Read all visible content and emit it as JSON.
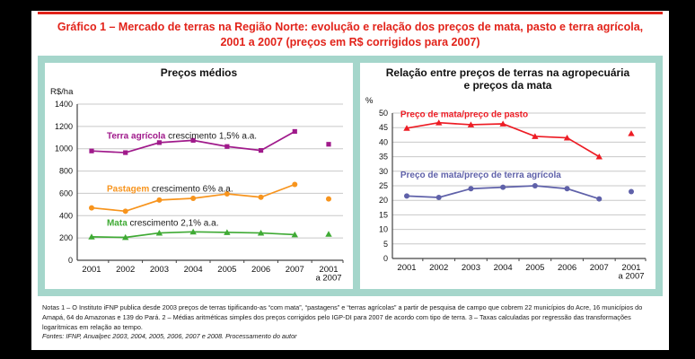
{
  "page": {
    "title_line1": "Gráfico 1 – Mercado de terras na Região Norte: evolução e relação dos preços de mata, pasto e terra agrícola,",
    "title_line2": "2001 a 2007 (preços em R$ corrigidos para 2007)",
    "notes": "Notas 1 – O Instituto iFNP publica desde 2003 preços de terras tipificando-as “com mata”, “pastagens” e “terras agrícolas” a partir de pesquisa de campo que cobrem 22 municípios do Acre, 16 municípios do Amapá, 64 do Amazonas e 139 do Pará. 2 – Médias aritméticas simples dos preços corrigidos pelo IGP-DI para 2007 de acordo com tipo de terra. 3 – Taxas calculadas por regressão das transformações logarítmicas em relação ao tempo.",
    "fontes": "Fontes: IFNP, Anualpec 2003, 2004, 2005, 2006, 2007 e 2008. Processamento do autor"
  },
  "colors": {
    "title_red": "#e2231a",
    "band_teal": "#a5d6cb",
    "grid": "#c8c8c8",
    "axis": "#444444",
    "annotation_text": "#1a1a1a"
  },
  "chart_data": [
    {
      "type": "line",
      "title": "Preços médios",
      "ylabel": "R$/ha",
      "categories": [
        "2001",
        "2002",
        "2003",
        "2004",
        "2005",
        "2006",
        "2007",
        "2001 a 2007"
      ],
      "last_category_isolated": true,
      "ylim": [
        0,
        1400
      ],
      "ytick_step": 200,
      "grid": true,
      "legend_position": "inline",
      "series": [
        {
          "name": "Terra agrícola",
          "annotation": " crescimento 1,5% a.a.",
          "color": "#a01a8b",
          "marker": "square",
          "values": [
            980,
            965,
            1055,
            1075,
            1020,
            985,
            1155
          ],
          "isolated_value": 1040,
          "label_at": [
            0.45,
            1090
          ]
        },
        {
          "name": "Pastagem",
          "annotation": " crescimento 6% a.a.",
          "color": "#f7941d",
          "marker": "circle",
          "values": [
            470,
            440,
            540,
            555,
            595,
            565,
            680
          ],
          "isolated_value": 550,
          "label_at": [
            0.45,
            615
          ]
        },
        {
          "name": "Mata",
          "annotation": " crescimento 2,1% a.a.",
          "color": "#3faa34",
          "marker": "triangle",
          "values": [
            210,
            205,
            245,
            255,
            250,
            245,
            230
          ],
          "isolated_value": 235,
          "label_at": [
            0.45,
            310
          ]
        }
      ]
    },
    {
      "type": "line",
      "title": "Relação entre preços de terras na agropecuária e preços da mata",
      "title_line1": "Relação entre preços de terras na agropecuária",
      "title_line2": "e preços da mata",
      "ylabel": "%",
      "categories": [
        "2001",
        "2002",
        "2003",
        "2004",
        "2005",
        "2006",
        "2007",
        "2001 a 2007"
      ],
      "last_category_isolated": true,
      "ylim": [
        0,
        50
      ],
      "ytick_step": 5,
      "grid": true,
      "legend_position": "inline",
      "series": [
        {
          "name": "Preço de mata/preço de pasto",
          "annotation": "",
          "color": "#ed1c24",
          "marker": "triangle",
          "values": [
            44.8,
            46.7,
            46.0,
            46.3,
            42.0,
            41.5,
            35.0
          ],
          "isolated_value": 43,
          "label_at": [
            -0.2,
            48.6
          ]
        },
        {
          "name": "Preço de mata/preço de terra agrícola",
          "annotation": "",
          "color": "#5f61a9",
          "marker": "circle",
          "values": [
            21.5,
            21.0,
            24.0,
            24.5,
            25.0,
            24.0,
            20.5
          ],
          "isolated_value": 23,
          "label_at": [
            -0.2,
            27.8
          ]
        }
      ]
    }
  ]
}
